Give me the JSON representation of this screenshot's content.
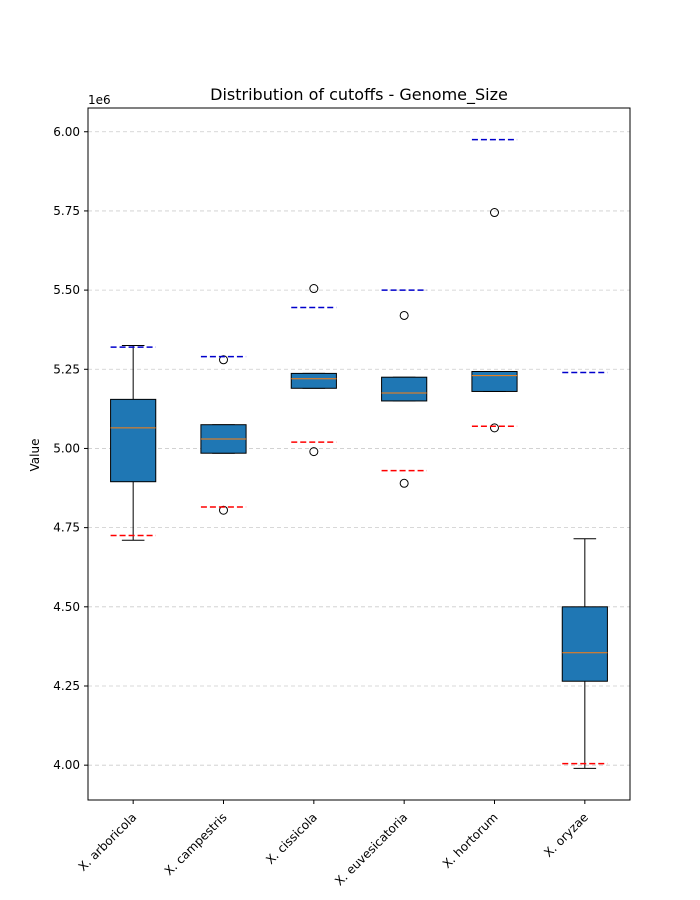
{
  "chart_data": {
    "type": "box",
    "title": "Distribution of cutoffs - Genome_Size",
    "ylabel": "Value",
    "xlabel": "",
    "offset_label": "1e6",
    "y_ticks": [
      "4.00",
      "4.25",
      "4.50",
      "4.75",
      "5.00",
      "5.25",
      "5.50",
      "5.75",
      "6.00"
    ],
    "y_tick_values": [
      4.0,
      4.25,
      4.5,
      4.75,
      5.0,
      5.25,
      5.5,
      5.75,
      6.0
    ],
    "ylim": [
      3.89,
      6.075
    ],
    "grid": "y-dashed",
    "box_color": "#1f77b4",
    "median_color": "#ff7f0e",
    "upper_cutoff_color": "#0000cc",
    "lower_cutoff_color": "#ff0000",
    "categories": [
      "X. arboricola",
      "X. campestris",
      "X. cissicola",
      "X. euvesicatoria",
      "X. hortorum",
      "X. oryzae"
    ],
    "boxes": [
      {
        "whislo": 4.71,
        "q1": 4.895,
        "med": 5.065,
        "q3": 5.155,
        "whishi": 5.325,
        "fliers": [],
        "upper_cutoff": 5.32,
        "lower_cutoff": 4.725
      },
      {
        "whislo": 4.985,
        "q1": 4.985,
        "med": 5.03,
        "q3": 5.075,
        "whishi": 5.075,
        "fliers": [
          4.805,
          5.28
        ],
        "upper_cutoff": 5.29,
        "lower_cutoff": 4.815
      },
      {
        "whislo": 5.19,
        "q1": 5.19,
        "med": 5.22,
        "q3": 5.237,
        "whishi": 5.237,
        "fliers": [
          4.99,
          5.505
        ],
        "upper_cutoff": 5.445,
        "lower_cutoff": 5.02
      },
      {
        "whislo": 5.15,
        "q1": 5.15,
        "med": 5.175,
        "q3": 5.225,
        "whishi": 5.225,
        "fliers": [
          4.89,
          5.42
        ],
        "upper_cutoff": 5.5,
        "lower_cutoff": 4.93
      },
      {
        "whislo": 5.18,
        "q1": 5.18,
        "med": 5.23,
        "q3": 5.243,
        "whishi": 5.243,
        "fliers": [
          5.065,
          5.745
        ],
        "upper_cutoff": 5.975,
        "lower_cutoff": 5.07
      },
      {
        "whislo": 3.99,
        "q1": 4.265,
        "med": 4.355,
        "q3": 4.5,
        "whishi": 4.715,
        "fliers": [],
        "upper_cutoff": 5.24,
        "lower_cutoff": 4.005
      }
    ]
  }
}
